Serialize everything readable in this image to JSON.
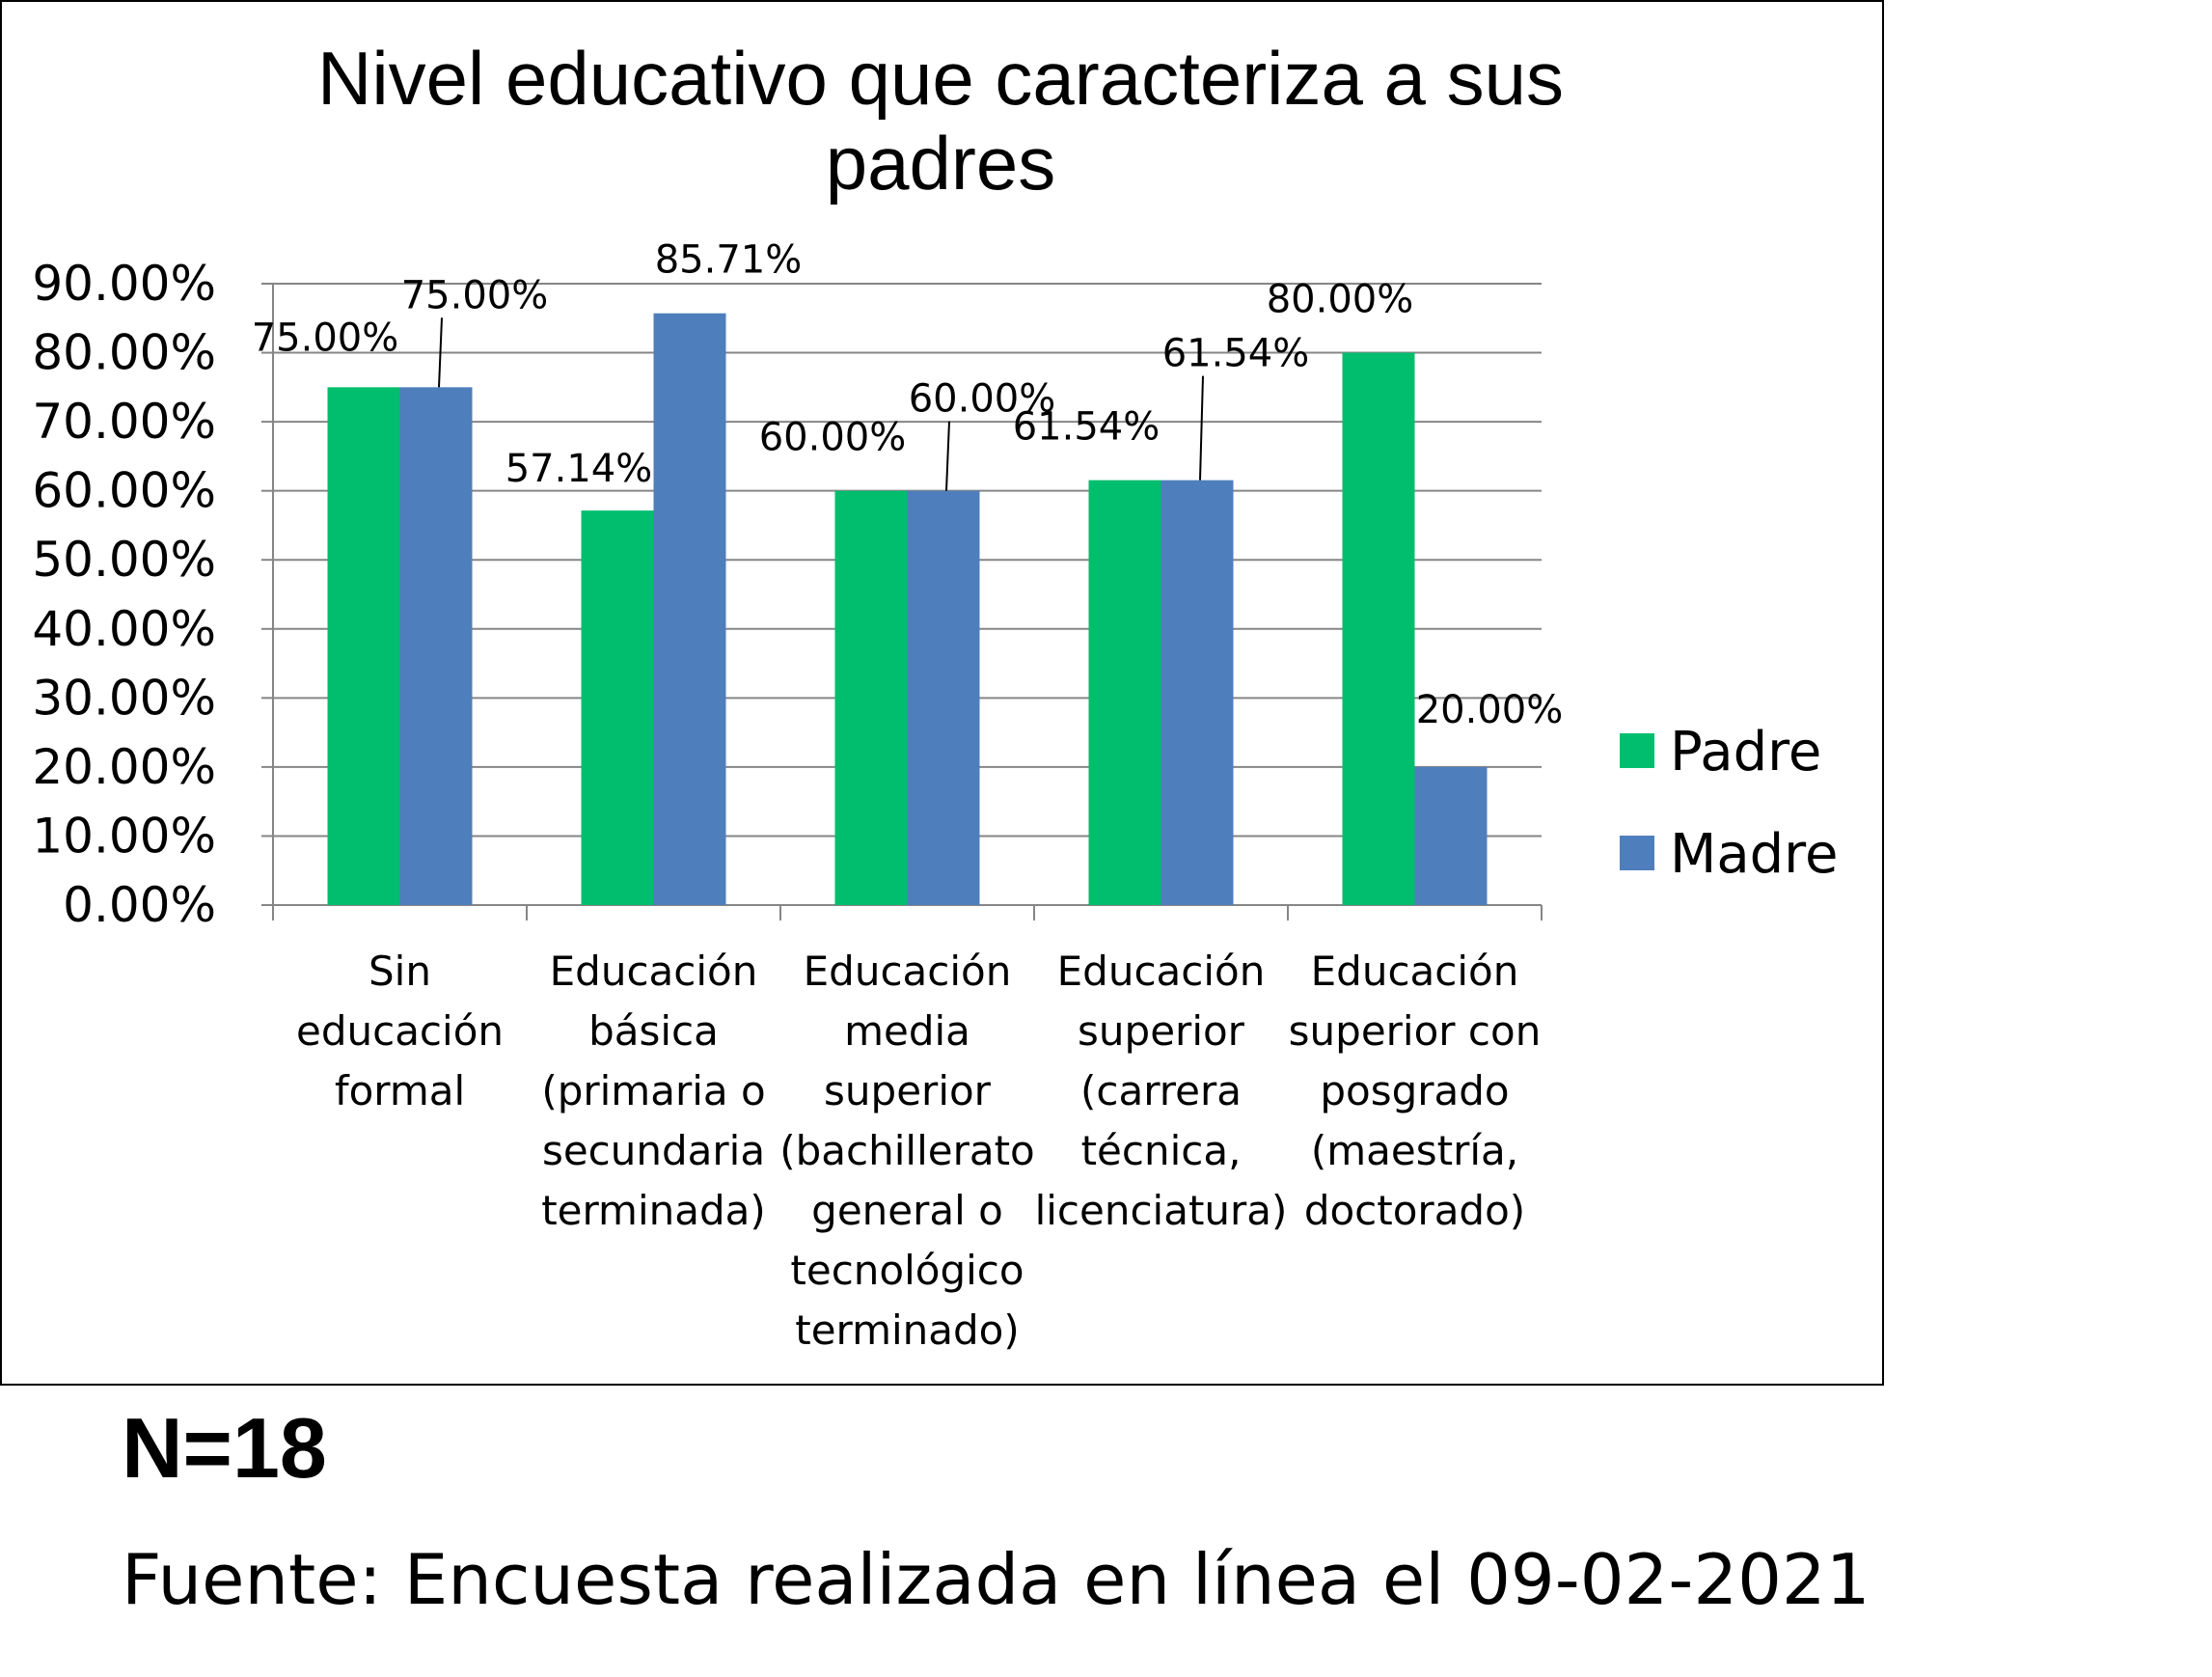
{
  "chart_data": {
    "type": "bar",
    "title_lines": [
      "Nivel educativo que caracteriza a sus",
      "padres"
    ],
    "categories": [
      [
        "Sin",
        "educación",
        "formal"
      ],
      [
        "Educación",
        "básica",
        "(primaria o",
        "secundaria",
        "terminada)"
      ],
      [
        "Educación",
        "media",
        "superior",
        "(bachillerato",
        "general o",
        "tecnológico",
        "terminado)"
      ],
      [
        "Educación",
        "superior",
        "(carrera",
        "técnica,",
        "licenciatura)"
      ],
      [
        "Educación",
        "superior con",
        "posgrado",
        "(maestría,",
        "doctorado)"
      ]
    ],
    "series": [
      {
        "name": "Padre",
        "color": "#00BE6E",
        "values": [
          75.0,
          57.14,
          60.0,
          61.54,
          80.0
        ],
        "labels": [
          "75.00%",
          "57.14%",
          "60.00%",
          "61.54%",
          "80.00%"
        ]
      },
      {
        "name": "Madre",
        "color": "#4F7EBC",
        "values": [
          75.0,
          85.71,
          60.0,
          61.54,
          20.0
        ],
        "labels": [
          "75.00%",
          "85.71%",
          "60.00%",
          "61.54%",
          "20.00%"
        ]
      }
    ],
    "ylim": [
      0,
      90
    ],
    "yticks": [
      "0.00%",
      "10.00%",
      "20.00%",
      "30.00%",
      "40.00%",
      "50.00%",
      "60.00%",
      "70.00%",
      "80.00%",
      "90.00%"
    ],
    "grid": true,
    "legend": "right"
  },
  "footer": {
    "n": "N=18",
    "source": "Fuente: Encuesta realizada en línea el 09-02-2021"
  }
}
